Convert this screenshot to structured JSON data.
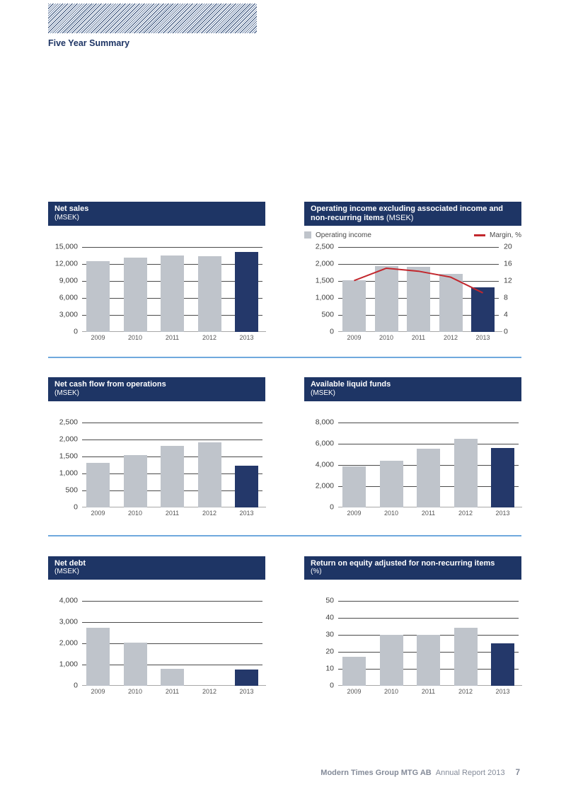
{
  "page": {
    "title": "Five Year Summary"
  },
  "footer": {
    "company": "Modern Times Group MTG AB",
    "report": "Annual Report 2013",
    "page_number": "7"
  },
  "colors": {
    "navy_header": "#1e3565",
    "bar_gray": "#bfc4cb",
    "bar_highlight_navy": "#24386a",
    "gridline": "#4a4a4a",
    "zero_baseline": "#a8a8a8",
    "margin_line_red": "#c2272d",
    "row_divider_blue": "#6fa9dd",
    "footer_text": "#848b99"
  },
  "icons": {
    "striped_banner": "diagonal-stripe-pattern"
  },
  "chart_data": [
    {
      "type": "bar",
      "title": "Net sales",
      "unit": "(MSEK)",
      "unit_inline": false,
      "categories": [
        "2009",
        "2010",
        "2011",
        "2012",
        "2013"
      ],
      "values": [
        12400,
        13100,
        13450,
        13350,
        14100
      ],
      "ylim": [
        0,
        15000
      ],
      "yticks": [
        0,
        3000,
        6000,
        9000,
        12000,
        15000
      ],
      "highlight_last": true,
      "grid": true
    },
    {
      "type": "bar+line",
      "title": "Operating income excluding associated income and non-recurring items",
      "unit": "(MSEK)",
      "unit_inline": true,
      "legend": [
        {
          "label": "Operating income",
          "swatch": "gray-square"
        },
        {
          "label": "Margin, %",
          "swatch": "red-line"
        }
      ],
      "legend_position": "top",
      "categories": [
        "2009",
        "2010",
        "2011",
        "2012",
        "2013"
      ],
      "values": [
        1520,
        1940,
        1920,
        1700,
        1310
      ],
      "ylim": [
        0,
        2500
      ],
      "yticks": [
        0,
        500,
        1000,
        1500,
        2000,
        2500
      ],
      "line": {
        "name": "Margin, %",
        "values": [
          12.1,
          15.0,
          14.3,
          12.9,
          9.2
        ],
        "ylim_right": [
          0,
          20
        ],
        "yticks_right": [
          0,
          4,
          8,
          12,
          16,
          20
        ]
      },
      "highlight_last": true,
      "grid": true
    },
    {
      "type": "bar",
      "title": "Net cash flow from operations",
      "unit": "(MSEK)",
      "unit_inline": false,
      "categories": [
        "2009",
        "2010",
        "2011",
        "2012",
        "2013"
      ],
      "values": [
        1310,
        1530,
        1800,
        1910,
        1220
      ],
      "ylim": [
        0,
        2500
      ],
      "yticks": [
        0,
        500,
        1000,
        1500,
        2000,
        2500
      ],
      "highlight_last": true,
      "grid": true
    },
    {
      "type": "bar",
      "title": "Available liquid funds",
      "unit": "(MSEK)",
      "unit_inline": false,
      "categories": [
        "2009",
        "2010",
        "2011",
        "2012",
        "2013"
      ],
      "values": [
        3850,
        4400,
        5500,
        6450,
        5550
      ],
      "ylim": [
        0,
        8000
      ],
      "yticks": [
        0,
        2000,
        4000,
        6000,
        8000
      ],
      "highlight_last": true,
      "grid": true
    },
    {
      "type": "bar",
      "title": "Net debt",
      "unit": "(MSEK)",
      "unit_inline": false,
      "categories": [
        "2009",
        "2010",
        "2011",
        "2012",
        "2013"
      ],
      "values": [
        2750,
        2050,
        800,
        0,
        780
      ],
      "ylim": [
        0,
        4000
      ],
      "yticks": [
        0,
        1000,
        2000,
        3000,
        4000
      ],
      "highlight_last": true,
      "grid": true
    },
    {
      "type": "bar",
      "title": "Return on equity adjusted for non-recurring items",
      "unit": "(%)",
      "unit_inline": false,
      "categories": [
        "2009",
        "2010",
        "2011",
        "2012",
        "2013"
      ],
      "values": [
        17,
        30,
        30,
        34,
        25
      ],
      "ylim": [
        0,
        50
      ],
      "yticks": [
        0,
        10,
        20,
        30,
        40,
        50
      ],
      "highlight_last": true,
      "grid": true
    }
  ]
}
